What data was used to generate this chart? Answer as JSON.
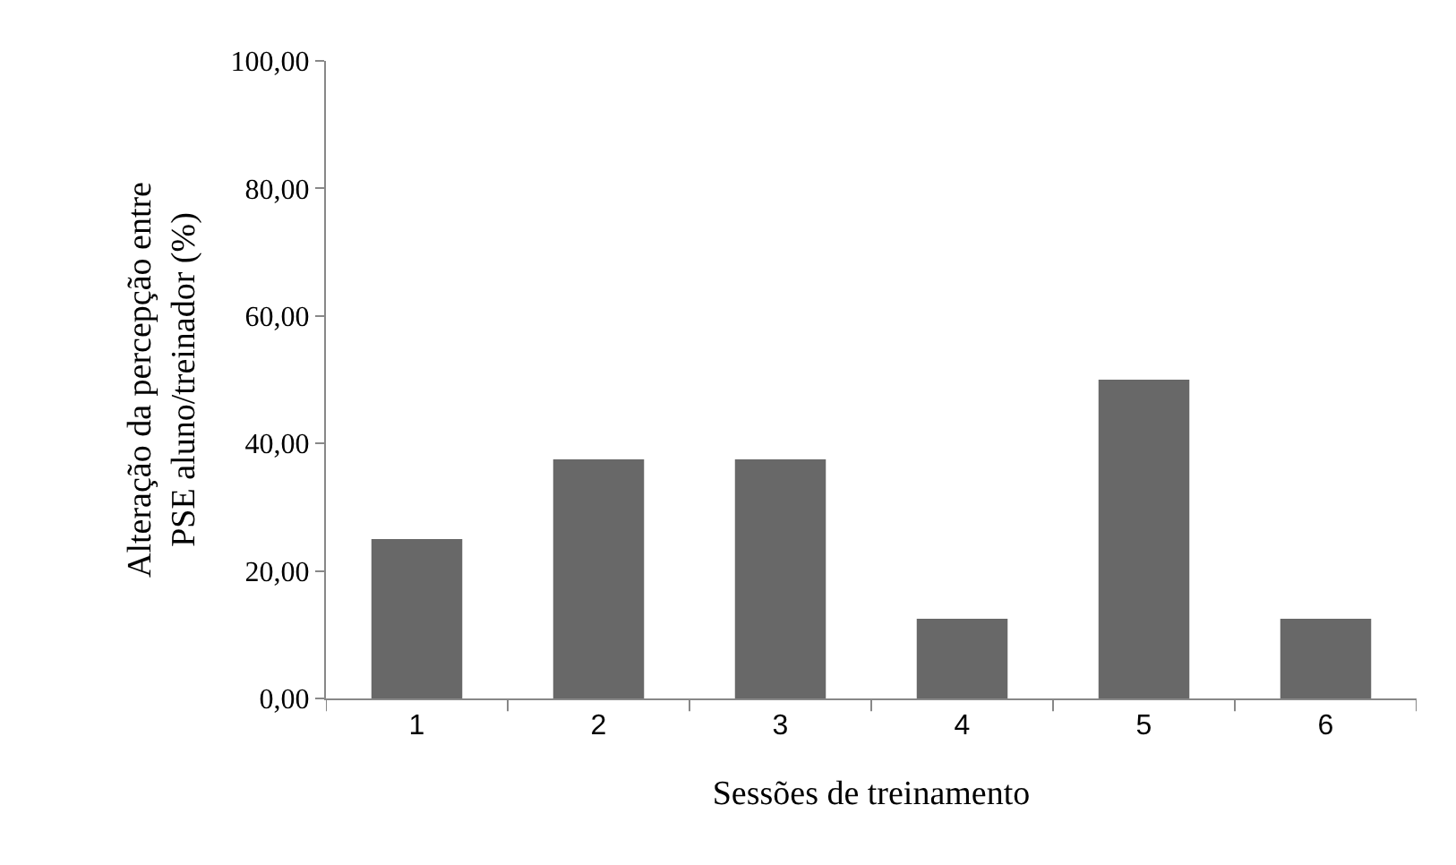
{
  "chart_data": {
    "type": "bar",
    "xlabel": "Sessões de treinamento",
    "ylabel": "Alteração da percepção entre\nPSE aluno/treinador (%)",
    "categories": [
      "1",
      "2",
      "3",
      "4",
      "5",
      "6"
    ],
    "values": [
      25,
      37.5,
      37.5,
      12.5,
      50,
      12.5
    ],
    "color": "#686868",
    "ylim": [
      0,
      100
    ],
    "yticks": [
      {
        "value": 0,
        "label": "0,00"
      },
      {
        "value": 20,
        "label": "20,00"
      },
      {
        "value": 40,
        "label": "40,00"
      },
      {
        "value": 60,
        "label": "60,00"
      },
      {
        "value": 80,
        "label": "80,00"
      },
      {
        "value": 100,
        "label": "100,00"
      }
    ]
  }
}
